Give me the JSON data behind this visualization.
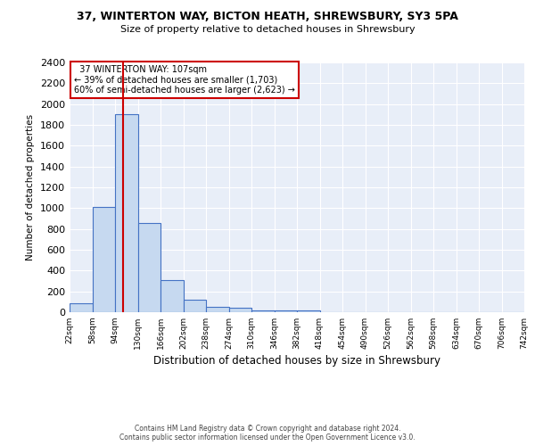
{
  "title": "37, WINTERTON WAY, BICTON HEATH, SHREWSBURY, SY3 5PA",
  "subtitle": "Size of property relative to detached houses in Shrewsbury",
  "xlabel": "Distribution of detached houses by size in Shrewsbury",
  "ylabel": "Number of detached properties",
  "bin_edges": [
    22,
    58,
    94,
    130,
    166,
    202,
    238,
    274,
    310,
    346,
    382,
    418,
    454,
    490,
    526,
    562,
    598,
    634,
    670,
    706,
    742
  ],
  "bar_heights": [
    90,
    1010,
    1900,
    860,
    310,
    120,
    55,
    45,
    20,
    15,
    20,
    0,
    0,
    0,
    0,
    0,
    0,
    0,
    0,
    0
  ],
  "bar_color": "#c6d9f0",
  "bar_edge_color": "#4472c4",
  "property_size": 107,
  "red_line_color": "#cc0000",
  "annotation_title": "37 WINTERTON WAY: 107sqm",
  "annotation_line1": "← 39% of detached houses are smaller (1,703)",
  "annotation_line2": "60% of semi-detached houses are larger (2,623) →",
  "annotation_box_color": "#ffffff",
  "annotation_box_edge_color": "#cc0000",
  "ylim": [
    0,
    2400
  ],
  "ytick_interval": 200,
  "plot_bg_color": "#e8eef8",
  "grid_color": "#ffffff",
  "footer_line1": "Contains HM Land Registry data © Crown copyright and database right 2024.",
  "footer_line2": "Contains public sector information licensed under the Open Government Licence v3.0."
}
